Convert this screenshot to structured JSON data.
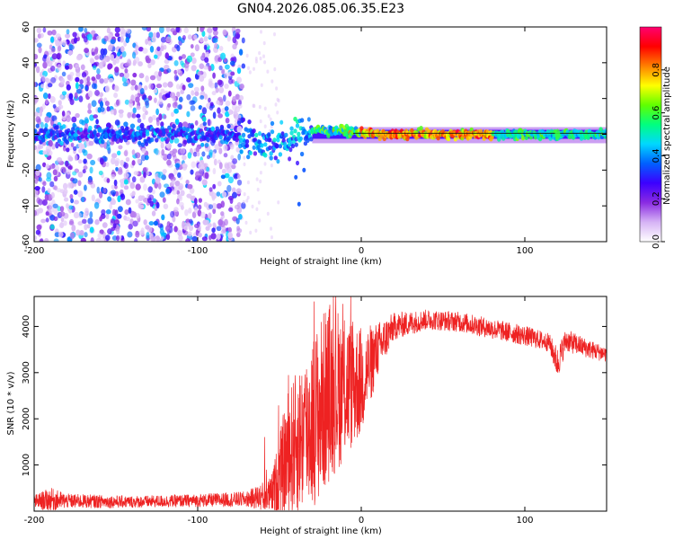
{
  "title": "GN04.2026.085.06.35.E23",
  "chart_data": [
    {
      "type": "heatmap",
      "id": "spectrogram",
      "xlabel": "Height of straight line (km)",
      "ylabel": "Frequency (Hz)",
      "xlim": [
        -200,
        150
      ],
      "ylim": [
        -60,
        60
      ],
      "xticks": [
        -200,
        -100,
        0,
        100
      ],
      "xtick_labels": [
        "-200",
        "-100",
        "0",
        "100"
      ],
      "yticks": [
        -60,
        -40,
        -20,
        0,
        20,
        40,
        60
      ],
      "ytick_labels": [
        "-60",
        "-40",
        "-20",
        "0",
        "20",
        "40",
        "60"
      ],
      "colorbar": {
        "label": "Normalized spectral amplitude",
        "range": [
          0,
          1
        ],
        "ticks": [
          0,
          0.2,
          0.4,
          0.6,
          0.8
        ],
        "tick_labels": [
          "0.0",
          "0.2",
          "0.4",
          "0.6",
          "0.8"
        ],
        "colors": [
          "#ffffff",
          "#d6b3f5",
          "#8a2be2",
          "#3c00ff",
          "#0060ff",
          "#00d8ff",
          "#00ff80",
          "#60ff00",
          "#ffff00",
          "#ff8000",
          "#ff0000",
          "#ff0070"
        ]
      },
      "features": {
        "noise_region_x": [
          -200,
          -72
        ],
        "central_band_freq": 0,
        "band_center_track": [
          [
            -200,
            0
          ],
          [
            -80,
            0
          ],
          [
            -60,
            -5
          ],
          [
            -45,
            -4
          ],
          [
            -30,
            2
          ],
          [
            -10,
            2
          ],
          [
            0,
            1
          ],
          [
            10,
            0
          ],
          [
            150,
            0
          ]
        ],
        "peak_region_x": [
          0,
          80
        ],
        "notch_x": 120
      }
    },
    {
      "type": "line",
      "id": "snr",
      "xlabel": "Height of straight line (km)",
      "ylabel": "SNR (10 * v/v)",
      "xlim": [
        -200,
        150
      ],
      "ylim": [
        0,
        4650
      ],
      "xticks": [
        -200,
        -100,
        0,
        100
      ],
      "xtick_labels": [
        "-200",
        "-100",
        "0",
        "100"
      ],
      "yticks": [
        1000,
        2000,
        3000,
        4000
      ],
      "ytick_labels": [
        "1000",
        "2000",
        "3000",
        "4000"
      ],
      "color": "#ee2222",
      "envelope": [
        {
          "x": -200,
          "y": 200,
          "amp": 150
        },
        {
          "x": -190,
          "y": 250,
          "amp": 260
        },
        {
          "x": -180,
          "y": 220,
          "amp": 160
        },
        {
          "x": -140,
          "y": 200,
          "amp": 130
        },
        {
          "x": -100,
          "y": 230,
          "amp": 140
        },
        {
          "x": -70,
          "y": 260,
          "amp": 170
        },
        {
          "x": -55,
          "y": 350,
          "amp": 400
        },
        {
          "x": -45,
          "y": 1200,
          "amp": 1400
        },
        {
          "x": -35,
          "y": 1700,
          "amp": 1700
        },
        {
          "x": -25,
          "y": 2200,
          "amp": 2000
        },
        {
          "x": -20,
          "y": 2600,
          "amp": 2000
        },
        {
          "x": -10,
          "y": 2700,
          "amp": 1600
        },
        {
          "x": 0,
          "y": 2800,
          "amp": 1200
        },
        {
          "x": 10,
          "y": 3500,
          "amp": 600
        },
        {
          "x": 20,
          "y": 4000,
          "amp": 300
        },
        {
          "x": 40,
          "y": 4150,
          "amp": 220
        },
        {
          "x": 60,
          "y": 4100,
          "amp": 220
        },
        {
          "x": 80,
          "y": 3950,
          "amp": 220
        },
        {
          "x": 100,
          "y": 3800,
          "amp": 220
        },
        {
          "x": 115,
          "y": 3650,
          "amp": 200
        },
        {
          "x": 120,
          "y": 3200,
          "amp": 350
        },
        {
          "x": 125,
          "y": 3700,
          "amp": 250
        },
        {
          "x": 140,
          "y": 3500,
          "amp": 200
        },
        {
          "x": 150,
          "y": 3400,
          "amp": 180
        }
      ]
    }
  ]
}
